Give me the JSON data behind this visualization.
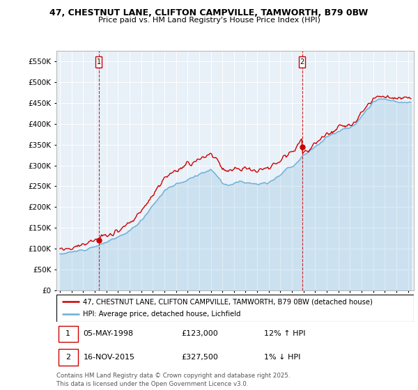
{
  "title": "47, CHESTNUT LANE, CLIFTON CAMPVILLE, TAMWORTH, B79 0BW",
  "subtitle": "Price paid vs. HM Land Registry's House Price Index (HPI)",
  "yticks": [
    0,
    50000,
    100000,
    150000,
    200000,
    250000,
    300000,
    350000,
    400000,
    450000,
    500000,
    550000
  ],
  "ylim": [
    0,
    575000
  ],
  "xlim_start": 1994.7,
  "xlim_end": 2025.5,
  "legend_line1": "47, CHESTNUT LANE, CLIFTON CAMPVILLE, TAMWORTH, B79 0BW (detached house)",
  "legend_line2": "HPI: Average price, detached house, Lichfield",
  "purchase1_date": "05-MAY-1998",
  "purchase1_price": "£123,000",
  "purchase1_hpi": "12% ↑ HPI",
  "purchase2_date": "16-NOV-2015",
  "purchase2_price": "£327,500",
  "purchase2_hpi": "1% ↓ HPI",
  "footer": "Contains HM Land Registry data © Crown copyright and database right 2025.\nThis data is licensed under the Open Government Licence v3.0.",
  "sale_color": "#cc0000",
  "hpi_color": "#6baed6",
  "chart_bg": "#e8f0f8",
  "marker1_year": 1998.35,
  "marker2_year": 2015.88,
  "background_color": "#ffffff",
  "grid_color": "#ffffff"
}
